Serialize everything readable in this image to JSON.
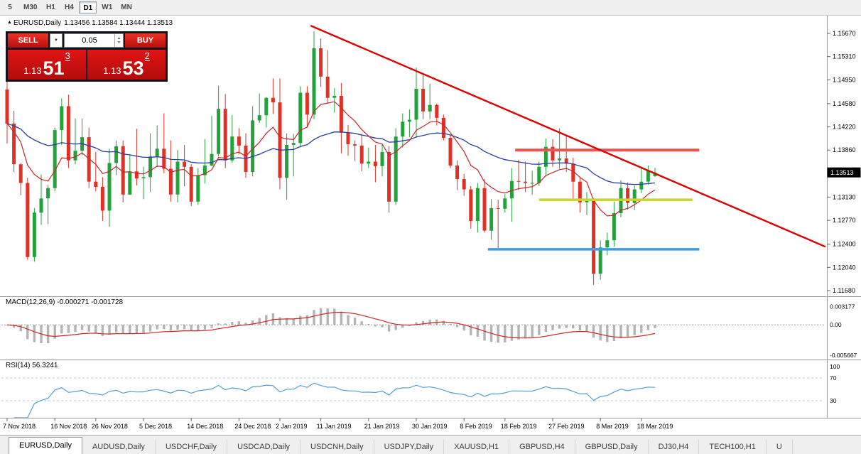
{
  "toolbar": {
    "periods": [
      {
        "label": "5",
        "active": false
      },
      {
        "label": "M30",
        "active": false
      },
      {
        "label": "H1",
        "active": false
      },
      {
        "label": "H4",
        "active": false
      },
      {
        "label": "D1",
        "active": true
      },
      {
        "label": "W1",
        "active": false
      },
      {
        "label": "MN",
        "active": false
      }
    ]
  },
  "chart_header": {
    "symbol": "EURUSD,Daily",
    "ohlc_text": "1.13456 1.13584 1.13444 1.13513"
  },
  "trade_panel": {
    "sell_label": "SELL",
    "buy_label": "BUY",
    "volume": "0.05",
    "sell_price": {
      "figure": "1.13",
      "pips": "51",
      "pipette": "3"
    },
    "buy_price": {
      "figure": "1.13",
      "pips": "53",
      "pipette": "2"
    }
  },
  "price_axis": {
    "ticks": [
      "1.15670",
      "1.15310",
      "1.14950",
      "1.14580",
      "1.14220",
      "1.13860",
      "1.13130",
      "1.12770",
      "1.12400",
      "1.12040",
      "1.11680"
    ],
    "current_price": "1.13513"
  },
  "chart_data": {
    "type": "candlestick",
    "symbol": "EURUSD",
    "timeframe": "Daily",
    "ohlc": [
      [
        1.148,
        1.15,
        1.1396,
        1.1427
      ],
      [
        1.1427,
        1.1447,
        1.1352,
        1.1364
      ],
      [
        1.1364,
        1.1366,
        1.1316,
        1.1335
      ],
      [
        1.1335,
        1.1343,
        1.1216,
        1.122
      ],
      [
        1.122,
        1.1296,
        1.1213,
        1.1289
      ],
      [
        1.1289,
        1.1348,
        1.127,
        1.1311
      ],
      [
        1.1311,
        1.1332,
        1.1271,
        1.1327
      ],
      [
        1.1327,
        1.1421,
        1.1322,
        1.1417
      ],
      [
        1.1417,
        1.1466,
        1.1394,
        1.1454
      ],
      [
        1.1454,
        1.1472,
        1.1358,
        1.137
      ],
      [
        1.137,
        1.1435,
        1.1364,
        1.1385
      ],
      [
        1.1385,
        1.1435,
        1.1378,
        1.1406
      ],
      [
        1.1406,
        1.1421,
        1.1327,
        1.1337
      ],
      [
        1.1337,
        1.1383,
        1.1322,
        1.1329
      ],
      [
        1.1329,
        1.1344,
        1.1276,
        1.1292
      ],
      [
        1.1292,
        1.1388,
        1.1267,
        1.1366
      ],
      [
        1.1366,
        1.1401,
        1.1347,
        1.1392
      ],
      [
        1.1392,
        1.1401,
        1.1305,
        1.1317
      ],
      [
        1.1317,
        1.138,
        1.1317,
        1.1353
      ],
      [
        1.1353,
        1.1419,
        1.1331,
        1.1342
      ],
      [
        1.1342,
        1.136,
        1.131,
        1.1344
      ],
      [
        1.1344,
        1.1412,
        1.1321,
        1.1376
      ],
      [
        1.1376,
        1.1424,
        1.136,
        1.1388
      ],
      [
        1.1388,
        1.1443,
        1.135,
        1.1357
      ],
      [
        1.1357,
        1.1401,
        1.1306,
        1.1317
      ],
      [
        1.1317,
        1.1386,
        1.1305,
        1.1368
      ],
      [
        1.1368,
        1.1394,
        1.133,
        1.136
      ],
      [
        1.136,
        1.1364,
        1.1299,
        1.1306
      ],
      [
        1.1306,
        1.1358,
        1.1301,
        1.1347
      ],
      [
        1.1347,
        1.1403,
        1.1334,
        1.1362
      ],
      [
        1.1362,
        1.1439,
        1.1361,
        1.138
      ],
      [
        1.138,
        1.1486,
        1.1376,
        1.145
      ],
      [
        1.145,
        1.1473,
        1.1358,
        1.137
      ],
      [
        1.137,
        1.144,
        1.1366,
        1.1407
      ],
      [
        1.1407,
        1.142,
        1.138,
        1.1393
      ],
      [
        1.1393,
        1.1412,
        1.1343,
        1.1352
      ],
      [
        1.1352,
        1.1454,
        1.1345,
        1.1432
      ],
      [
        1.1432,
        1.1474,
        1.1428,
        1.144
      ],
      [
        1.144,
        1.1468,
        1.1421,
        1.1467
      ],
      [
        1.1467,
        1.1497,
        1.1442,
        1.146
      ],
      [
        1.146,
        1.1497,
        1.1325,
        1.1343
      ],
      [
        1.1343,
        1.1412,
        1.1309,
        1.1394
      ],
      [
        1.1394,
        1.1411,
        1.1345,
        1.1397
      ],
      [
        1.1397,
        1.1485,
        1.139,
        1.1475
      ],
      [
        1.1475,
        1.1485,
        1.1421,
        1.1441
      ],
      [
        1.1441,
        1.157,
        1.1434,
        1.1544
      ],
      [
        1.1544,
        1.1559,
        1.1484,
        1.15
      ],
      [
        1.15,
        1.1541,
        1.1459,
        1.1467
      ],
      [
        1.1467,
        1.1482,
        1.1444,
        1.147
      ],
      [
        1.147,
        1.149,
        1.1381,
        1.1413
      ],
      [
        1.1413,
        1.1425,
        1.1377,
        1.1395
      ],
      [
        1.1395,
        1.1401,
        1.1369,
        1.1393
      ],
      [
        1.1393,
        1.1411,
        1.1353,
        1.1365
      ],
      [
        1.1365,
        1.139,
        1.1358,
        1.1368
      ],
      [
        1.1368,
        1.1394,
        1.1336,
        1.1361
      ],
      [
        1.1361,
        1.1394,
        1.1345,
        1.1383
      ],
      [
        1.1383,
        1.1392,
        1.1289,
        1.1306
      ],
      [
        1.1306,
        1.142,
        1.1301,
        1.1407
      ],
      [
        1.1407,
        1.1443,
        1.139,
        1.143
      ],
      [
        1.143,
        1.1449,
        1.1406,
        1.1433
      ],
      [
        1.1433,
        1.1514,
        1.1405,
        1.1481
      ],
      [
        1.1481,
        1.1503,
        1.1434,
        1.1446
      ],
      [
        1.1446,
        1.1489,
        1.1434,
        1.1456
      ],
      [
        1.1456,
        1.1458,
        1.1424,
        1.1436
      ],
      [
        1.1436,
        1.1441,
        1.1401,
        1.1405
      ],
      [
        1.1405,
        1.141,
        1.1358,
        1.1362
      ],
      [
        1.1362,
        1.137,
        1.1324,
        1.1341
      ],
      [
        1.1341,
        1.1349,
        1.1315,
        1.1325
      ],
      [
        1.1325,
        1.133,
        1.1264,
        1.1276
      ],
      [
        1.1276,
        1.1335,
        1.1258,
        1.1327
      ],
      [
        1.1327,
        1.1341,
        1.1258,
        1.1261
      ],
      [
        1.1261,
        1.131,
        1.1247,
        1.1296
      ],
      [
        1.1296,
        1.1309,
        1.1234,
        1.1295
      ],
      [
        1.1295,
        1.1318,
        1.1289,
        1.1311
      ],
      [
        1.1311,
        1.1358,
        1.1275,
        1.1338
      ],
      [
        1.1338,
        1.1371,
        1.1324,
        1.1337
      ],
      [
        1.1337,
        1.1368,
        1.1321,
        1.1335
      ],
      [
        1.1335,
        1.1354,
        1.1317,
        1.1335
      ],
      [
        1.1335,
        1.1368,
        1.133,
        1.136
      ],
      [
        1.136,
        1.1404,
        1.1345,
        1.1391
      ],
      [
        1.1391,
        1.1403,
        1.136,
        1.137
      ],
      [
        1.137,
        1.142,
        1.1357,
        1.1373
      ],
      [
        1.1373,
        1.1408,
        1.1352,
        1.1365
      ],
      [
        1.1365,
        1.1374,
        1.1309,
        1.1337
      ],
      [
        1.1337,
        1.1344,
        1.1289,
        1.1305
      ],
      [
        1.1305,
        1.1321,
        1.1285,
        1.1307
      ],
      [
        1.1307,
        1.1312,
        1.1177,
        1.1194
      ],
      [
        1.1194,
        1.1246,
        1.1185,
        1.1235
      ],
      [
        1.1235,
        1.1258,
        1.1223,
        1.1246
      ],
      [
        1.1246,
        1.1306,
        1.1236,
        1.1288
      ],
      [
        1.1288,
        1.1339,
        1.1282,
        1.1327
      ],
      [
        1.1327,
        1.1336,
        1.1294,
        1.1304
      ],
      [
        1.1304,
        1.1331,
        1.1293,
        1.1325
      ],
      [
        1.1325,
        1.136,
        1.1319,
        1.1337
      ],
      [
        1.1337,
        1.1362,
        1.1332,
        1.1354
      ],
      [
        1.13456,
        1.13584,
        1.13444,
        1.13513
      ]
    ],
    "x_labels": [
      [
        0,
        "7 Nov 2018"
      ],
      [
        7,
        "16 Nov 2018"
      ],
      [
        13,
        "26 Nov 2018"
      ],
      [
        20,
        "5 Dec 2018"
      ],
      [
        27,
        "14 Dec 2018"
      ],
      [
        34,
        "24 Dec 2018"
      ],
      [
        40,
        "2 Jan 2019"
      ],
      [
        46,
        "11 Jan 2019"
      ],
      [
        53,
        "21 Jan 2019"
      ],
      [
        60,
        "30 Jan 2019"
      ],
      [
        67,
        "8 Feb 2019"
      ],
      [
        73,
        "18 Feb 2019"
      ],
      [
        80,
        "27 Feb 2019"
      ],
      [
        87,
        "8 Mar 2019"
      ],
      [
        93,
        "18 Mar 2019"
      ]
    ],
    "colors": {
      "up": "#23a23c",
      "down": "#e03127",
      "ma_fast": "#cc2525",
      "ma_slow": "#2b3f9e",
      "trend": "#dd0000",
      "resistance": "#ef5350",
      "support_mid": "#c9d62a",
      "support_low": "#3b9ceb",
      "macd_bar": "#b4b4b4",
      "macd_signal": "#cc2525",
      "rsi": "#569fd0"
    },
    "ma_fast_period": 9,
    "ma_slow_period": 36,
    "annotations": {
      "trendline": {
        "from_index": 44.5,
        "from_price": 1.1579,
        "to_index": 120,
        "to_price": 1.1236
      },
      "hlines": [
        {
          "price": 1.1386,
          "from_index": 74.5,
          "to_index": 101.5,
          "color_key": "resistance",
          "width": 4
        },
        {
          "price": 1.1309,
          "from_index": 78,
          "to_index": 100.5,
          "color_key": "support_mid",
          "width": 3.5
        },
        {
          "price": 1.1232,
          "from_index": 70.5,
          "to_index": 101.5,
          "color_key": "support_low",
          "width": 3.5
        }
      ]
    },
    "macd": {
      "label": "MACD(12,26,9) -0.000271 -0.001728",
      "fast": 12,
      "slow": 26,
      "signal": 9,
      "axis": [
        {
          "value": 0.003177,
          "label": "0.003177"
        },
        {
          "value": 0,
          "label": "0.00"
        },
        {
          "value": -0.005667,
          "label": "-0.005667"
        }
      ]
    },
    "rsi": {
      "label": "RSI(14) 56.3241",
      "period": 14,
      "levels": [
        70,
        30
      ],
      "axis": [
        {
          "value": 100,
          "label": "100"
        },
        {
          "value": 70,
          "label": "70"
        },
        {
          "value": 30,
          "label": "30"
        }
      ]
    }
  },
  "tabs": [
    {
      "label": "EURUSD,Daily",
      "active": true
    },
    {
      "label": "AUDUSD,Daily",
      "active": false
    },
    {
      "label": "USDCHF,Daily",
      "active": false
    },
    {
      "label": "USDCAD,Daily",
      "active": false
    },
    {
      "label": "USDCNH,Daily",
      "active": false
    },
    {
      "label": "USDJPY,Daily",
      "active": false
    },
    {
      "label": "XAUUSD,H1",
      "active": false
    },
    {
      "label": "GBPUSD,H4",
      "active": false
    },
    {
      "label": "GBPUSD,Daily",
      "active": false
    },
    {
      "label": "DJ30,H4",
      "active": false
    },
    {
      "label": "TECH100,H1",
      "active": false
    },
    {
      "label": "U",
      "active": false
    }
  ]
}
